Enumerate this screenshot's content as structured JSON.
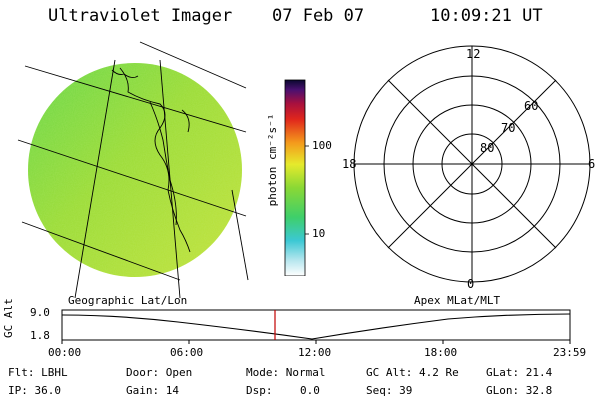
{
  "header": {
    "instrument": "Ultraviolet Imager",
    "date": "07 Feb 07",
    "time": "10:09:21 UT"
  },
  "colorbar": {
    "unit": "photon cm⁻²s⁻¹",
    "tick_100": "100",
    "tick_10": "10"
  },
  "panels": {
    "left_caption": "Geographic Lat/Lon",
    "right_caption": "Apex MLat/MLT"
  },
  "polar": {
    "mlt_top": "12",
    "mlt_left": "18",
    "mlt_right": "6",
    "mlt_bottom": "0",
    "lat_60": "60",
    "lat_70": "70",
    "lat_80": "80"
  },
  "altitude_plot": {
    "ylabel": "GC Alt",
    "y_top": "9.0",
    "y_bottom": "1.8",
    "x_ticks": [
      "00:00",
      "06:00",
      "12:00",
      "18:00",
      "23:59"
    ]
  },
  "status": {
    "flt": "Flt: LBHL",
    "ip": "IP: 36.0",
    "door": "Door: Open",
    "gain": "Gain: 14",
    "mode": "Mode: Normal",
    "dsp_label": "Dsp:",
    "dsp_value": "0.0",
    "gcalt": "GC Alt: 4.2 Re",
    "seq": "Seq: 39",
    "glat": "GLat: 21.4",
    "glon": "GLon: 32.8"
  },
  "colors": {
    "earth_green": "#7fd430",
    "earth_yellow": "#b5e23a",
    "marker_red": "#c00000"
  }
}
